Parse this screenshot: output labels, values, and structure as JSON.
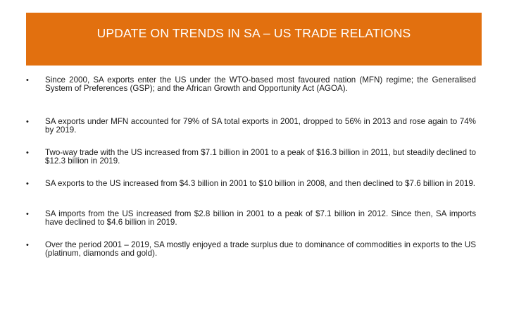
{
  "slide": {
    "title": "UPDATE ON TRENDS IN SA – US TRADE RELATIONS",
    "accent_color": "#e2700f",
    "bullet_glyph": "•",
    "bullets": [
      "Since 2000, SA exports enter the US under the WTO-based most favoured nation (MFN) regime; the Generalised System of Preferences (GSP); and the African Growth and Opportunity Act (AGOA).",
      "SA exports under MFN accounted for 79% of SA total exports in 2001, dropped to 56% in 2013 and rose again to 74% by 2019.",
      "Two-way trade with the US increased from $7.1 billion in 2001 to a peak of $16.3 billion in 2011, but steadily declined to $12.3 billion in 2019.",
      "SA exports to the US increased from $4.3 billion in 2001 to $10 billion in 2008, and then declined to $7.6 billion in 2019.",
      "SA imports from the US increased from $2.8 billion in 2001 to a peak of $7.1 billion in 2012. Since then, SA imports have declined to $4.6 billion in 2019.",
      "Over the period 2001 – 2019, SA mostly enjoyed a trade surplus due to dominance of commodities in exports to the US (platinum, diamonds and gold)."
    ]
  }
}
